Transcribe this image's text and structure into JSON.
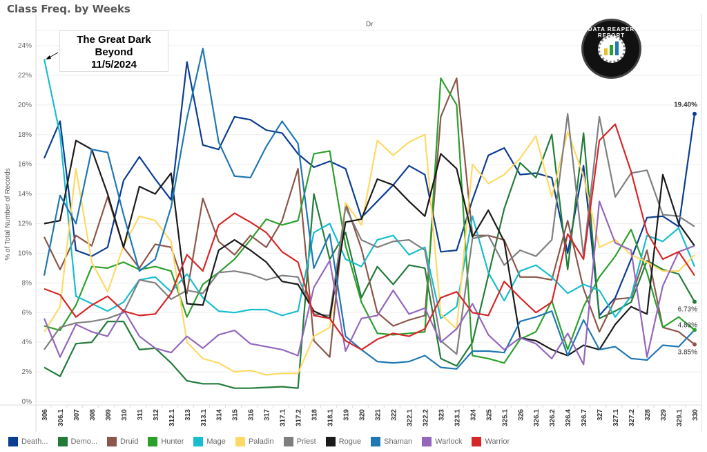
{
  "title": "Class Freq. by Weeks",
  "column_header": "Dr",
  "annotation": {
    "line1": "The Great Dark",
    "line2": "Beyond",
    "line3": "11/5/2024"
  },
  "logo": {
    "text": "DATA REAPER REPORT"
  },
  "chart_data": {
    "type": "line",
    "title": "Class Freq. by Weeks",
    "xlabel": "",
    "ylabel": "% of Total Number of Records",
    "ylim": [
      0,
      25
    ],
    "yticks": [
      "0%",
      "2%",
      "4%",
      "6%",
      "8%",
      "10%",
      "12%",
      "14%",
      "16%",
      "18%",
      "20%",
      "22%",
      "24%"
    ],
    "grid": true,
    "legend_position": "bottom",
    "categories": [
      "306",
      "306.1",
      "307",
      "308",
      "309",
      "310",
      "311",
      "312",
      "312.1",
      "313",
      "313.1",
      "314",
      "315",
      "316",
      "317",
      "317.1",
      "317.2",
      "318",
      "318.1",
      "319",
      "320",
      "321",
      "322",
      "322.1",
      "322.2",
      "323",
      "323.1",
      "324",
      "325",
      "325.1",
      "326",
      "326.1",
      "326.2",
      "326.4",
      "326.7",
      "327",
      "327.1",
      "327.2",
      "328",
      "329",
      "329.1",
      "330"
    ],
    "end_labels": [
      {
        "series": "Death...",
        "label": "19.40%"
      },
      {
        "series": "Demo...",
        "label": "6.73%"
      },
      {
        "series": "Hunter",
        "label": "4.83%"
      },
      {
        "series": "Druid",
        "label": "3.85%"
      }
    ],
    "series": [
      {
        "name": "Death...",
        "color": "#0b3d91",
        "values": [
          16.4,
          18.9,
          10.2,
          9.8,
          10.4,
          14.9,
          16.5,
          15.0,
          13.6,
          22.9,
          17.3,
          17.0,
          19.2,
          19.0,
          18.3,
          18.1,
          16.7,
          15.8,
          16.2,
          15.7,
          12.4,
          13.5,
          14.6,
          15.9,
          15.3,
          10.1,
          10.2,
          13.6,
          16.6,
          17.1,
          15.3,
          15.4,
          15.1,
          10.0,
          15.9,
          5.8,
          7.0,
          9.6,
          12.4,
          12.5,
          11.8,
          19.4
        ]
      },
      {
        "name": "Demo...",
        "color": "#237b3a",
        "values": [
          2.3,
          1.7,
          3.9,
          4.0,
          5.4,
          5.4,
          3.5,
          3.6,
          2.6,
          1.4,
          1.2,
          1.2,
          0.9,
          0.9,
          0.95,
          1.0,
          0.9,
          14.0,
          9.6,
          11.4,
          7.0,
          9.1,
          7.9,
          9.2,
          9.0,
          2.9,
          2.4,
          4.0,
          8.5,
          13.0,
          16.1,
          15.1,
          18.0,
          8.9,
          18.1,
          5.6,
          6.1,
          6.7,
          9.5,
          8.9,
          8.6,
          6.73
        ]
      },
      {
        "name": "Druid",
        "color": "#8c564b",
        "values": [
          11.1,
          8.9,
          11.2,
          10.5,
          13.8,
          10.4,
          9.0,
          10.6,
          10.4,
          7.3,
          13.7,
          10.8,
          9.9,
          11.2,
          10.4,
          12.2,
          15.7,
          4.1,
          3.0,
          13.4,
          10.3,
          6.0,
          5.1,
          5.5,
          5.8,
          19.2,
          21.8,
          11.2,
          11.2,
          10.9,
          8.4,
          8.4,
          8.2,
          12.2,
          7.6,
          4.7,
          6.9,
          7.0,
          10.2,
          5.0,
          4.7,
          3.85
        ]
      },
      {
        "name": "Hunter",
        "color": "#2ca02c",
        "values": [
          5.1,
          4.8,
          6.5,
          9.1,
          9.0,
          9.4,
          8.9,
          9.1,
          8.8,
          5.7,
          7.9,
          8.7,
          9.6,
          10.9,
          12.3,
          11.9,
          12.2,
          16.7,
          16.9,
          10.5,
          6.7,
          4.6,
          4.5,
          4.6,
          4.7,
          21.8,
          20.0,
          3.1,
          2.9,
          2.6,
          4.2,
          4.7,
          6.8,
          3.5,
          6.4,
          8.4,
          9.8,
          11.6,
          8.7,
          5.0,
          5.7,
          4.83
        ]
      },
      {
        "name": "Mage",
        "color": "#17becf",
        "values": [
          23.1,
          18.0,
          7.1,
          6.6,
          6.1,
          6.7,
          8.2,
          8.4,
          7.4,
          8.6,
          7.0,
          6.1,
          6.0,
          6.2,
          6.2,
          5.8,
          6.1,
          11.4,
          12.0,
          9.6,
          9.1,
          10.9,
          11.2,
          9.9,
          10.4,
          5.6,
          6.4,
          12.5,
          8.7,
          6.8,
          8.8,
          9.2,
          8.4,
          7.3,
          7.9,
          7.5,
          5.7,
          7.1,
          11.2,
          10.8,
          11.7,
          9.1
        ]
      },
      {
        "name": "Paladin",
        "color": "#ffd966",
        "values": [
          4.7,
          6.4,
          15.7,
          9.4,
          7.4,
          10.5,
          12.5,
          12.2,
          10.8,
          4.0,
          2.9,
          2.6,
          2.0,
          2.1,
          1.8,
          1.9,
          1.9,
          4.4,
          5.0,
          13.4,
          11.9,
          17.6,
          16.6,
          17.5,
          18.0,
          5.9,
          4.9,
          16.0,
          14.7,
          15.3,
          16.4,
          17.9,
          13.8,
          18.2,
          15.2,
          10.4,
          10.9,
          9.9,
          9.4,
          8.8,
          8.8,
          9.9
        ]
      },
      {
        "name": "Priest",
        "color": "#7f7f7f",
        "values": [
          3.5,
          5.0,
          5.3,
          5.4,
          5.6,
          6.0,
          8.2,
          8.0,
          6.9,
          7.5,
          7.3,
          8.7,
          8.8,
          8.6,
          8.2,
          8.5,
          8.4,
          5.9,
          5.8,
          13.1,
          10.9,
          10.4,
          10.8,
          10.9,
          10.2,
          4.1,
          3.2,
          11.0,
          11.2,
          9.2,
          10.2,
          9.8,
          10.9,
          19.4,
          9.8,
          19.2,
          13.8,
          15.4,
          15.6,
          12.6,
          12.5,
          11.8
        ]
      },
      {
        "name": "Rogue",
        "color": "#1a1a1a",
        "values": [
          12.0,
          12.2,
          17.6,
          17.0,
          14.0,
          10.4,
          14.5,
          14.0,
          15.4,
          6.6,
          6.5,
          10.2,
          10.9,
          10.2,
          9.4,
          8.1,
          7.9,
          6.1,
          5.6,
          12.1,
          12.3,
          15.0,
          14.6,
          13.5,
          12.5,
          16.7,
          15.7,
          11.1,
          12.9,
          10.8,
          4.3,
          4.1,
          3.5,
          3.1,
          3.8,
          3.5,
          5.2,
          6.4,
          5.9,
          15.3,
          12.0,
          10.5
        ]
      },
      {
        "name": "Shaman",
        "color": "#1f77b4",
        "values": [
          8.5,
          13.9,
          12.0,
          17.0,
          16.8,
          12.6,
          8.8,
          9.6,
          13.1,
          19.1,
          23.8,
          17.5,
          15.2,
          15.1,
          17.2,
          18.9,
          17.4,
          9.0,
          11.3,
          4.4,
          3.5,
          2.7,
          2.6,
          2.7,
          3.1,
          2.3,
          2.2,
          3.4,
          3.4,
          3.3,
          5.4,
          5.7,
          6.1,
          3.1,
          5.5,
          3.5,
          3.7,
          2.9,
          2.8,
          3.8,
          3.7,
          4.83
        ]
      },
      {
        "name": "Warlock",
        "color": "#9467bd",
        "values": [
          5.6,
          3.0,
          5.2,
          4.7,
          4.4,
          6.2,
          4.4,
          3.6,
          3.3,
          4.4,
          3.6,
          4.5,
          4.8,
          3.9,
          3.7,
          3.5,
          3.1,
          7.7,
          9.5,
          3.4,
          5.6,
          5.8,
          7.5,
          5.9,
          6.3,
          4.0,
          4.9,
          6.6,
          4.5,
          3.5,
          4.3,
          3.9,
          2.9,
          4.6,
          2.5,
          13.5,
          10.7,
          10.2,
          3.0,
          7.8,
          10.1,
          10.5
        ]
      },
      {
        "name": "Warrior",
        "color": "#d62728",
        "values": [
          7.6,
          7.2,
          5.7,
          6.5,
          7.1,
          6.1,
          5.8,
          5.9,
          7.3,
          9.9,
          8.8,
          11.9,
          12.7,
          12.1,
          11.4,
          10.1,
          9.4,
          5.8,
          5.6,
          4.1,
          3.5,
          4.2,
          4.6,
          4.4,
          4.9,
          7.0,
          7.4,
          6.0,
          5.8,
          8.1,
          7.0,
          6.0,
          6.7,
          11.3,
          9.6,
          17.6,
          18.7,
          15.5,
          11.4,
          9.6,
          10.1,
          8.5
        ]
      }
    ]
  }
}
